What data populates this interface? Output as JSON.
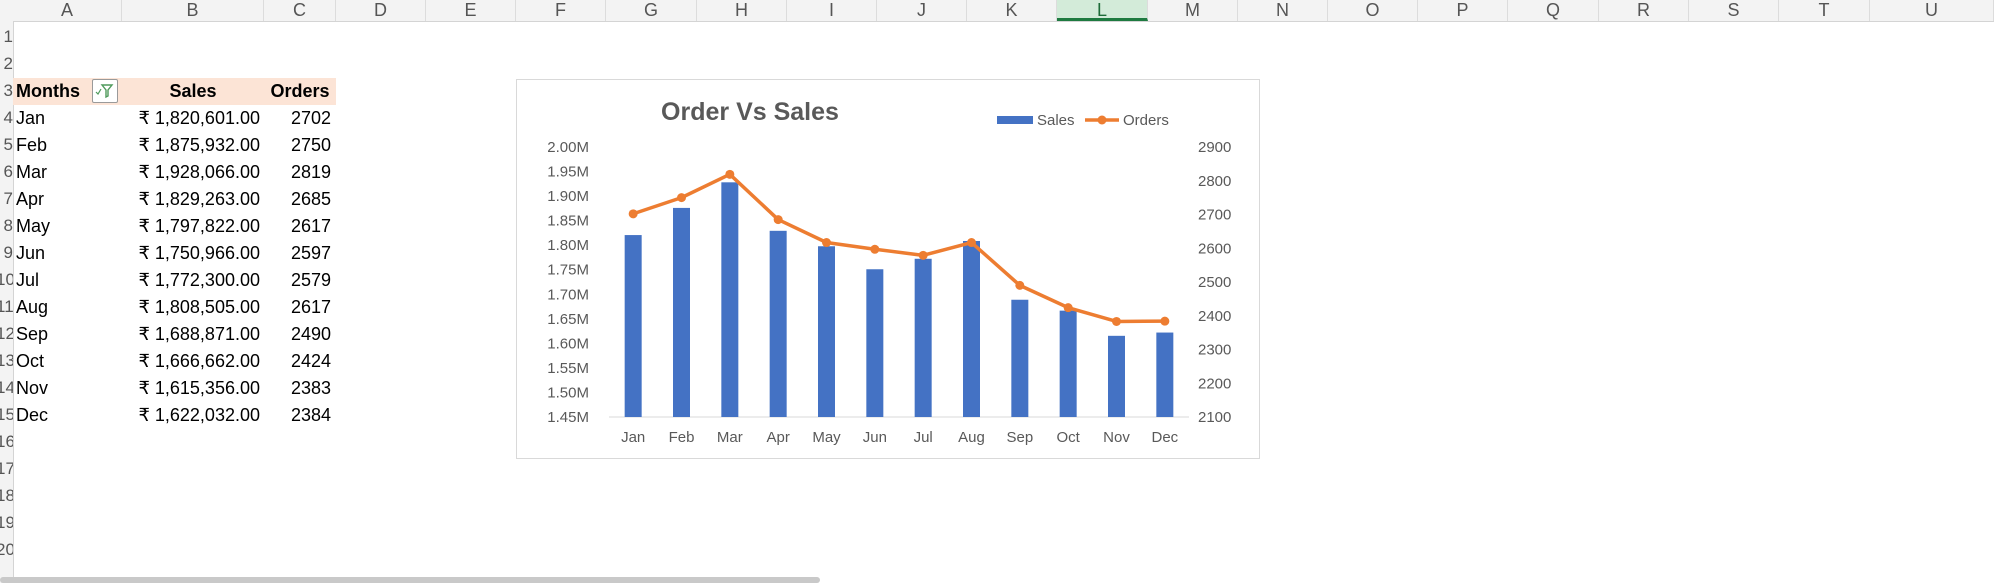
{
  "columns": [
    "A",
    "B",
    "C",
    "D",
    "E",
    "F",
    "G",
    "H",
    "I",
    "J",
    "K",
    "L",
    "M",
    "N",
    "O",
    "P",
    "Q",
    "R",
    "S",
    "T",
    "U"
  ],
  "active_column": "L",
  "rows": [
    "1",
    "2",
    "3",
    "4",
    "5",
    "6",
    "7",
    "8",
    "9",
    "10",
    "11",
    "12",
    "13",
    "14",
    "15",
    "16",
    "17",
    "18",
    "19",
    "20"
  ],
  "table": {
    "headers": [
      "Months",
      "Sales",
      "Orders"
    ],
    "rows": [
      {
        "month": "Jan",
        "sales": "₹ 1,820,601.00",
        "orders": "2702"
      },
      {
        "month": "Feb",
        "sales": "₹ 1,875,932.00",
        "orders": "2750"
      },
      {
        "month": "Mar",
        "sales": "₹ 1,928,066.00",
        "orders": "2819"
      },
      {
        "month": "Apr",
        "sales": "₹ 1,829,263.00",
        "orders": "2685"
      },
      {
        "month": "May",
        "sales": "₹ 1,797,822.00",
        "orders": "2617"
      },
      {
        "month": "Jun",
        "sales": "₹ 1,750,966.00",
        "orders": "2597"
      },
      {
        "month": "Jul",
        "sales": "₹ 1,772,300.00",
        "orders": "2579"
      },
      {
        "month": "Aug",
        "sales": "₹ 1,808,505.00",
        "orders": "2617"
      },
      {
        "month": "Sep",
        "sales": "₹ 1,688,871.00",
        "orders": "2490"
      },
      {
        "month": "Oct",
        "sales": "₹ 1,666,662.00",
        "orders": "2424"
      },
      {
        "month": "Nov",
        "sales": "₹ 1,615,356.00",
        "orders": "2383"
      },
      {
        "month": "Dec",
        "sales": "₹ 1,622,032.00",
        "orders": "2384"
      }
    ]
  },
  "chart_data": {
    "type": "bar",
    "title": "Order Vs Sales",
    "categories": [
      "Jan",
      "Feb",
      "Mar",
      "Apr",
      "May",
      "Jun",
      "Jul",
      "Aug",
      "Sep",
      "Oct",
      "Nov",
      "Dec"
    ],
    "series": [
      {
        "name": "Sales",
        "type": "bar",
        "axis": "left",
        "color": "#4472c4",
        "values": [
          1820601,
          1875932,
          1928066,
          1829263,
          1797822,
          1750966,
          1772300,
          1808505,
          1688871,
          1666662,
          1615356,
          1622032
        ]
      },
      {
        "name": "Orders",
        "type": "line",
        "axis": "right",
        "color": "#ed7d31",
        "values": [
          2702,
          2750,
          2819,
          2685,
          2617,
          2597,
          2579,
          2617,
          2490,
          2424,
          2383,
          2384
        ]
      }
    ],
    "y_left": {
      "min": 1450000,
      "max": 2000000,
      "step": 50000,
      "tick_labels": [
        "1.45M",
        "1.50M",
        "1.55M",
        "1.60M",
        "1.65M",
        "1.70M",
        "1.75M",
        "1.80M",
        "1.85M",
        "1.90M",
        "1.95M",
        "2.00M"
      ]
    },
    "y_right": {
      "min": 2100,
      "max": 2900,
      "step": 100,
      "tick_labels": [
        "2100",
        "2200",
        "2300",
        "2400",
        "2500",
        "2600",
        "2700",
        "2800",
        "2900"
      ]
    },
    "legend_position": "top-right",
    "grid": false
  }
}
